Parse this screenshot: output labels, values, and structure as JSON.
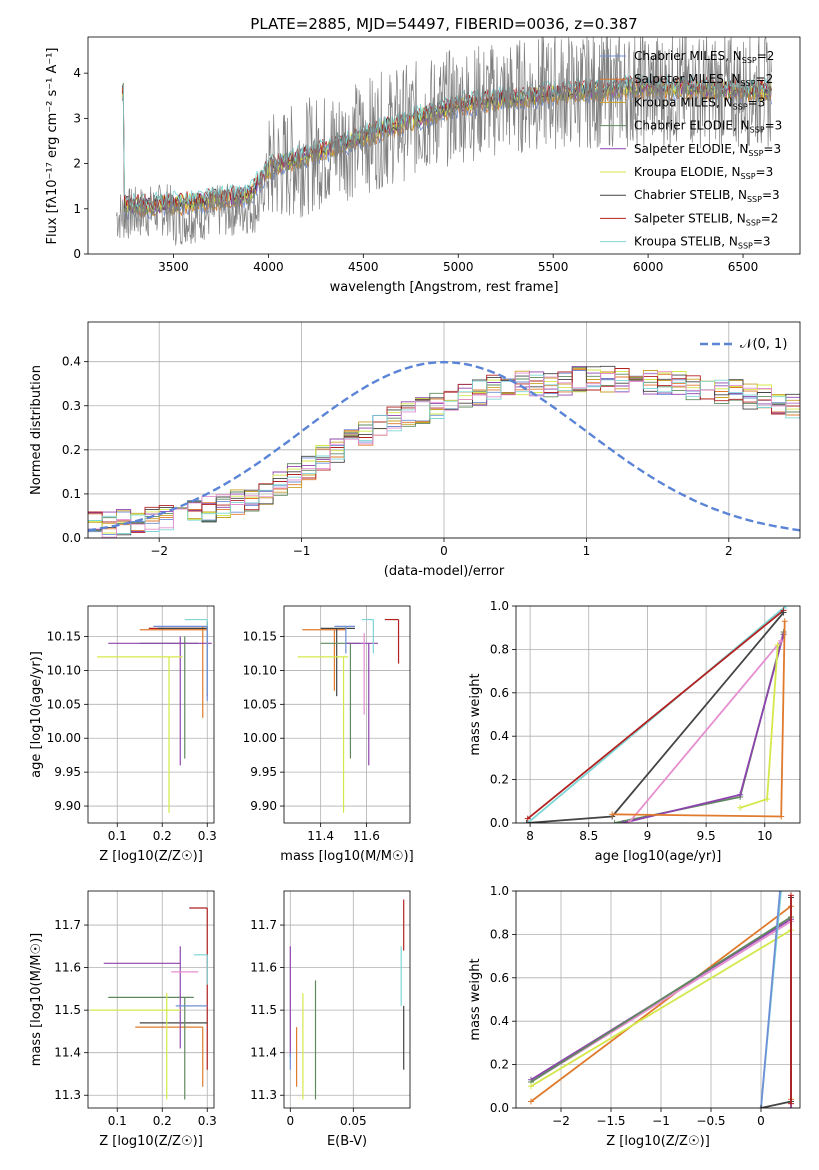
{
  "chart_data": [
    {
      "id": "spectrum",
      "type": "line",
      "title": "PLATE=2885, MJD=54497, FIBERID=0036, z=0.387",
      "xlabel": "wavelength [Angstrom, rest frame]",
      "ylabel": "Flux [f_λ 10^-17 erg cm^-2 s^-1 A^-1]",
      "xlim": [
        3050,
        6800
      ],
      "ylim": [
        0,
        4.8
      ],
      "xticks": [
        3500,
        4000,
        4500,
        5000,
        5500,
        6000,
        6500
      ],
      "yticks": [
        0,
        1,
        2,
        3,
        4
      ],
      "grid": false,
      "legend": "top-right",
      "data_range": [
        3200,
        6650
      ],
      "data_continuum": [
        [
          3200,
          0.85
        ],
        [
          3480,
          1.0
        ],
        [
          3500,
          0.75
        ],
        [
          3750,
          0.95
        ],
        [
          3950,
          1.05
        ],
        [
          4000,
          1.85
        ],
        [
          4500,
          2.6
        ],
        [
          5000,
          3.3
        ],
        [
          5500,
          3.6
        ],
        [
          6000,
          3.65
        ],
        [
          6650,
          3.6
        ]
      ],
      "model_continuum": [
        [
          3240,
          1.05
        ],
        [
          3500,
          1.1
        ],
        [
          3700,
          1.2
        ],
        [
          3900,
          1.3
        ],
        [
          4000,
          1.9
        ],
        [
          4300,
          2.3
        ],
        [
          4500,
          2.6
        ],
        [
          5000,
          3.3
        ],
        [
          5500,
          3.55
        ],
        [
          6000,
          3.7
        ],
        [
          6650,
          3.6
        ]
      ],
      "model_range": [
        3230,
        6650
      ],
      "series": [
        {
          "name": "Chabrier MILES, N_SSP=2",
          "color": "#6e8fd6"
        },
        {
          "name": "Salpeter MILES, N_SSP=2",
          "color": "#e07a2c"
        },
        {
          "name": "Kroupa MILES, N_SSP=3",
          "color": "#c9a227"
        },
        {
          "name": "Chabrier ELODIE, N_SSP=3",
          "color": "#5f8a5f"
        },
        {
          "name": "Salpeter ELODIE, N_SSP=3",
          "color": "#8e44ad"
        },
        {
          "name": "Kroupa ELODIE, N_SSP=3",
          "color": "#d4e84a"
        },
        {
          "name": "Chabrier STELIB, N_SSP=3",
          "color": "#444444"
        },
        {
          "name": "Salpeter STELIB, N_SSP=2",
          "color": "#b22222"
        },
        {
          "name": "Kroupa STELIB, N_SSP=3",
          "color": "#7fd6d6"
        }
      ]
    },
    {
      "id": "residuals",
      "type": "line",
      "xlabel": "(data-model)/error",
      "ylabel": "Normed distribution",
      "xlim": [
        -2.5,
        2.5
      ],
      "ylim": [
        0,
        0.49
      ],
      "xticks": [
        -2,
        -1,
        0,
        1,
        2
      ],
      "yticks": [
        0.0,
        0.1,
        0.2,
        0.3,
        0.4
      ],
      "grid": true,
      "legend": "top-right",
      "legend_label": "N(0,1)",
      "gaussian": {
        "mean": 0,
        "sigma": 1,
        "color": "#5b84d6"
      },
      "hist_bin_width": 0.1,
      "hist_start": -2.5,
      "hist_base": [
        0.03,
        0.03,
        0.035,
        0.04,
        0.04,
        0.045,
        0.05,
        0.06,
        0.065,
        0.07,
        0.08,
        0.09,
        0.1,
        0.12,
        0.14,
        0.16,
        0.18,
        0.2,
        0.22,
        0.24,
        0.26,
        0.27,
        0.28,
        0.29,
        0.3,
        0.31,
        0.32,
        0.33,
        0.34,
        0.34,
        0.35,
        0.35,
        0.35,
        0.35,
        0.36,
        0.36,
        0.36,
        0.36,
        0.36,
        0.35,
        0.35,
        0.35,
        0.34,
        0.34,
        0.33,
        0.33,
        0.32,
        0.32,
        0.31,
        0.3,
        0.3,
        0.29,
        0.28,
        0.27,
        0.26,
        0.25,
        0.24,
        0.23,
        0.22,
        0.21,
        0.2,
        0.19,
        0.17,
        0.16,
        0.15,
        0.14,
        0.13,
        0.12,
        0.11,
        0.1,
        0.095,
        0.09,
        0.085,
        0.08,
        0.075,
        0.07,
        0.07,
        0.065,
        0.06,
        0.06,
        0.06
      ],
      "hist_colors": [
        "#6e8fd6",
        "#e07a2c",
        "#c9a227",
        "#5f8a5f",
        "#8e44ad",
        "#d4e84a",
        "#444444",
        "#b22222",
        "#7fd6d6",
        "#e58fd0"
      ]
    },
    {
      "id": "age_vs_z",
      "type": "scatter",
      "xlabel": "Z [log10(Z/Z☉)]",
      "ylabel": "age [log10(age/yr)]",
      "xlim": [
        0.035,
        0.315
      ],
      "ylim": [
        9.875,
        10.195
      ],
      "xticks": [
        0.1,
        0.2,
        0.3
      ],
      "yticks": [
        9.9,
        9.95,
        10.0,
        10.05,
        10.1,
        10.15
      ],
      "grid": true,
      "crosses": [
        {
          "x": 0.3,
          "y": 10.162,
          "xerr": [
            0.13,
            0.0
          ],
          "yerr": [
            0.1,
            0.01
          ],
          "color": "#b22222"
        },
        {
          "x": 0.29,
          "y": 10.16,
          "xerr": [
            0.14,
            0.01
          ],
          "yerr": [
            0.13,
            0.005
          ],
          "color": "#e07a2c"
        },
        {
          "x": 0.3,
          "y": 10.162,
          "xerr": [
            0.11,
            0.0
          ],
          "yerr": [
            0.0,
            0.0
          ],
          "color": "#444444"
        },
        {
          "x": 0.25,
          "y": 10.14,
          "xerr": [
            0.1,
            0.03
          ],
          "yerr": [
            0.17,
            0.01
          ],
          "color": "#5f8a5f"
        },
        {
          "x": 0.24,
          "y": 10.14,
          "xerr": [
            0.16,
            0.07
          ],
          "yerr": [
            0.18,
            0.01
          ],
          "color": "#8e44ad"
        },
        {
          "x": 0.25,
          "y": 10.155,
          "xerr": [
            0.0,
            0.0
          ],
          "yerr": [
            0.0,
            0.0
          ],
          "color": "#e58fd0"
        },
        {
          "x": 0.215,
          "y": 10.12,
          "xerr": [
            0.16,
            0.03
          ],
          "yerr": [
            0.23,
            0.0
          ],
          "color": "#d4e84a"
        },
        {
          "x": 0.3,
          "y": 10.175,
          "xerr": [
            0.05,
            0.0
          ],
          "yerr": [
            0.11,
            0.0
          ],
          "color": "#7fd6d6"
        },
        {
          "x": 0.3,
          "y": 10.165,
          "xerr": [
            0.12,
            0.0
          ],
          "yerr": [
            0.11,
            0.0
          ],
          "color": "#6e8fd6"
        }
      ]
    },
    {
      "id": "age_vs_mass",
      "type": "scatter",
      "xlabel": "mass [log10(M/M☉)]",
      "ylabel": "",
      "xlim": [
        11.24,
        11.79
      ],
      "ylim": [
        9.875,
        10.195
      ],
      "xticks": [
        11.4,
        11.6
      ],
      "yticks": [
        9.9,
        9.95,
        10.0,
        10.05,
        10.1,
        10.15
      ],
      "grid": true,
      "crosses": [
        {
          "x": 11.74,
          "y": 10.175,
          "xerr": [
            0.06,
            0.0
          ],
          "yerr": [
            0.065,
            0.0
          ],
          "color": "#b22222"
        },
        {
          "x": 11.46,
          "y": 10.16,
          "xerr": [
            0.14,
            0.05
          ],
          "yerr": [
            0.09,
            0.0
          ],
          "color": "#e07a2c"
        },
        {
          "x": 11.47,
          "y": 10.162,
          "xerr": [
            0.07,
            0.08
          ],
          "yerr": [
            0.1,
            0.0
          ],
          "color": "#444444"
        },
        {
          "x": 11.53,
          "y": 10.14,
          "xerr": [
            0.13,
            0.04
          ],
          "yerr": [
            0.17,
            0.0
          ],
          "color": "#5f8a5f"
        },
        {
          "x": 11.61,
          "y": 10.14,
          "xerr": [
            0.1,
            0.04
          ],
          "yerr": [
            0.18,
            0.0
          ],
          "color": "#8e44ad"
        },
        {
          "x": 11.59,
          "y": 10.155,
          "xerr": [
            0.0,
            0.0
          ],
          "yerr": [
            0.12,
            0.0
          ],
          "color": "#e58fd0"
        },
        {
          "x": 11.5,
          "y": 10.12,
          "xerr": [
            0.2,
            0.02
          ],
          "yerr": [
            0.23,
            0.0
          ],
          "color": "#d4e84a"
        },
        {
          "x": 11.63,
          "y": 10.175,
          "xerr": [
            0.05,
            0.0
          ],
          "yerr": [
            0.05,
            0.0
          ],
          "color": "#7fd6d6"
        },
        {
          "x": 11.51,
          "y": 10.165,
          "xerr": [
            0.05,
            0.04
          ],
          "yerr": [
            0.04,
            0.0
          ],
          "color": "#6e8fd6"
        }
      ]
    },
    {
      "id": "weight_vs_age",
      "type": "line",
      "xlabel": "age [log10(age/yr)]",
      "ylabel": "mass weight",
      "xlim": [
        7.88,
        10.3
      ],
      "ylim": [
        0,
        1
      ],
      "xticks": [
        8.0,
        8.5,
        9.0,
        9.5,
        10.0
      ],
      "yticks": [
        0.0,
        0.2,
        0.4,
        0.6,
        0.8,
        1.0
      ],
      "grid": true,
      "series": [
        {
          "color": "#7fd6d6",
          "points": [
            [
              7.98,
              0.0
            ],
            [
              10.18,
              1.0
            ]
          ]
        },
        {
          "color": "#b22222",
          "points": [
            [
              7.98,
              0.02
            ],
            [
              10.16,
              0.98
            ]
          ]
        },
        {
          "color": "#444444",
          "points": [
            [
              7.97,
              0.0
            ],
            [
              8.7,
              0.03
            ],
            [
              10.16,
              0.97
            ]
          ]
        },
        {
          "color": "#5f8a5f",
          "points": [
            [
              8.72,
              0.0
            ],
            [
              9.79,
              0.12
            ],
            [
              10.16,
              0.88
            ]
          ]
        },
        {
          "color": "#8e44ad",
          "points": [
            [
              8.79,
              0.0
            ],
            [
              9.79,
              0.13
            ],
            [
              10.16,
              0.87
            ]
          ]
        },
        {
          "color": "#e58fd0",
          "points": [
            [
              8.84,
              0.0
            ],
            [
              10.14,
              0.84
            ]
          ]
        },
        {
          "color": "#d4e84a",
          "points": [
            [
              9.79,
              0.07
            ],
            [
              10.02,
              0.11
            ],
            [
              10.11,
              0.82
            ]
          ]
        },
        {
          "color": "#e07a2c",
          "points": [
            [
              8.7,
              0.04
            ],
            [
              10.14,
              0.03
            ],
            [
              10.17,
              0.93
            ]
          ]
        }
      ]
    },
    {
      "id": "mass_vs_z",
      "type": "scatter",
      "xlabel": "Z [log10(Z/Z☉)]",
      "ylabel": "mass [log10(M/M☉)]",
      "xlim": [
        0.035,
        0.315
      ],
      "ylim": [
        11.27,
        11.78
      ],
      "xticks": [
        0.1,
        0.2,
        0.3
      ],
      "yticks": [
        11.3,
        11.4,
        11.5,
        11.6,
        11.7
      ],
      "grid": true,
      "crosses": [
        {
          "x": 0.3,
          "y": 11.74,
          "xerr": [
            0.04,
            0.0
          ],
          "yerr": [
            0.38,
            0.0
          ],
          "color": "#b22222"
        },
        {
          "x": 0.29,
          "y": 11.46,
          "xerr": [
            0.15,
            0.0
          ],
          "yerr": [
            0.14,
            0.0
          ],
          "color": "#e07a2c"
        },
        {
          "x": 0.3,
          "y": 11.47,
          "xerr": [
            0.15,
            0.0
          ],
          "yerr": [
            0.0,
            0.0
          ],
          "color": "#444444"
        },
        {
          "x": 0.25,
          "y": 11.53,
          "xerr": [
            0.17,
            0.02
          ],
          "yerr": [
            0.24,
            0.0
          ],
          "color": "#5f8a5f"
        },
        {
          "x": 0.24,
          "y": 11.61,
          "xerr": [
            0.17,
            0.0
          ],
          "yerr": [
            0.2,
            0.04
          ],
          "color": "#8e44ad"
        },
        {
          "x": 0.26,
          "y": 11.59,
          "xerr": [
            0.04,
            0.02
          ],
          "yerr": [
            0.0,
            0.0
          ],
          "color": "#e58fd0"
        },
        {
          "x": 0.21,
          "y": 11.5,
          "xerr": [
            0.17,
            0.03
          ],
          "yerr": [
            0.21,
            0.04
          ],
          "color": "#d4e84a"
        },
        {
          "x": 0.3,
          "y": 11.63,
          "xerr": [
            0.03,
            0.0
          ],
          "yerr": [
            0.07,
            0.0
          ],
          "color": "#7fd6d6"
        },
        {
          "x": 0.3,
          "y": 11.51,
          "xerr": [
            0.07,
            0.0
          ],
          "yerr": [
            0.0,
            0.0
          ],
          "color": "#6e8fd6"
        }
      ]
    },
    {
      "id": "mass_vs_ebv",
      "type": "scatter",
      "xlabel": "E(B-V)",
      "ylabel": "",
      "xlim": [
        -0.005,
        0.095
      ],
      "ylim": [
        11.27,
        11.78
      ],
      "xticks": [
        0.0,
        0.05
      ],
      "yticks": [
        11.3,
        11.4,
        11.5,
        11.6,
        11.7
      ],
      "grid": true,
      "crosses": [
        {
          "x": 0.09,
          "y": 11.74,
          "xerr": [
            0.0,
            0.0
          ],
          "yerr": [
            0.1,
            0.02
          ],
          "color": "#b22222"
        },
        {
          "x": 0.005,
          "y": 11.46,
          "xerr": [
            0.0,
            0.0
          ],
          "yerr": [
            0.14,
            0.0
          ],
          "color": "#e07a2c"
        },
        {
          "x": 0.09,
          "y": 11.47,
          "xerr": [
            0.0,
            0.0
          ],
          "yerr": [
            0.11,
            0.04
          ],
          "color": "#444444"
        },
        {
          "x": 0.02,
          "y": 11.43,
          "xerr": [
            0.0,
            0.0
          ],
          "yerr": [
            0.14,
            0.14
          ],
          "color": "#5f8a5f"
        },
        {
          "x": 0.0,
          "y": 11.55,
          "xerr": [
            0.0,
            0.0
          ],
          "yerr": [
            0.16,
            0.1
          ],
          "color": "#8e44ad"
        },
        {
          "x": 0.01,
          "y": 11.42,
          "xerr": [
            0.0,
            0.0
          ],
          "yerr": [
            0.13,
            0.12
          ],
          "color": "#d4e84a"
        },
        {
          "x": 0.088,
          "y": 11.58,
          "xerr": [
            0.0,
            0.0
          ],
          "yerr": [
            0.07,
            0.07
          ],
          "color": "#7fd6d6"
        },
        {
          "x": 0.0,
          "y": 11.38,
          "xerr": [
            0.0,
            0.0
          ],
          "yerr": [
            0.02,
            0.02
          ],
          "color": "#6e8fd6"
        }
      ]
    },
    {
      "id": "weight_vs_z",
      "type": "line",
      "xlabel": "Z [log10(Z/Z☉)]",
      "ylabel": "mass weight",
      "xlim": [
        -2.45,
        0.39
      ],
      "ylim": [
        0,
        1
      ],
      "xticks": [
        -2.0,
        -1.5,
        -1.0,
        -0.5,
        0.0
      ],
      "yticks": [
        0.0,
        0.2,
        0.4,
        0.6,
        0.8,
        1.0
      ],
      "grid": true,
      "series": [
        {
          "color": "#e07a2c",
          "points": [
            [
              -2.3,
              0.03
            ],
            [
              0.3,
              0.93
            ],
            [
              0.3,
              0.04
            ]
          ]
        },
        {
          "color": "#8e44ad",
          "points": [
            [
              -2.3,
              0.13
            ],
            [
              0.3,
              0.87
            ],
            [
              0.3,
              0.0
            ]
          ]
        },
        {
          "color": "#e58fd0",
          "points": [
            [
              -2.3,
              0.12
            ],
            [
              0.3,
              0.86
            ]
          ]
        },
        {
          "color": "#5f8a5f",
          "points": [
            [
              -2.3,
              0.12
            ],
            [
              0.3,
              0.88
            ]
          ]
        },
        {
          "color": "#d4e84a",
          "points": [
            [
              -2.3,
              0.1
            ],
            [
              0.3,
              0.82
            ]
          ]
        },
        {
          "color": "#7fd6d6",
          "points": [
            [
              0.0,
              0.0
            ],
            [
              0.2,
              1.0
            ]
          ]
        },
        {
          "color": "#6e8fd6",
          "points": [
            [
              0.0,
              0.0
            ],
            [
              0.19,
              1.0
            ]
          ]
        },
        {
          "color": "#444444",
          "points": [
            [
              0.0,
              0.0
            ],
            [
              0.3,
              0.03
            ],
            [
              0.3,
              0.97
            ]
          ]
        },
        {
          "color": "#b22222",
          "points": [
            [
              0.3,
              0.02
            ],
            [
              0.3,
              0.98
            ]
          ]
        }
      ]
    }
  ]
}
